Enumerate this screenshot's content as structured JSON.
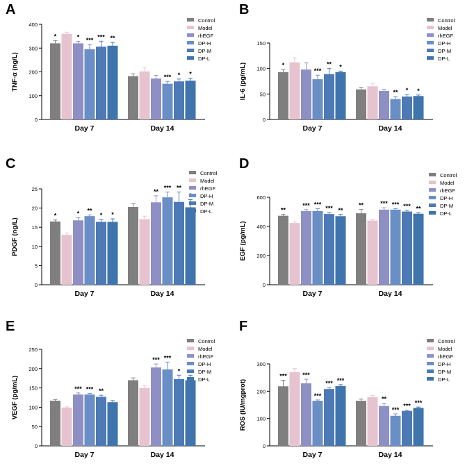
{
  "figure": {
    "groups": [
      "Day 7",
      "Day 14"
    ],
    "legend": [
      "Control",
      "Model",
      "rhEGF",
      "DP-H",
      "DP-M",
      "DP-L"
    ],
    "colors": [
      "#7f7f7f",
      "#e6c3cf",
      "#8e8fc5",
      "#6a8fc7",
      "#4d79b5",
      "#3f74ac"
    ]
  },
  "chart_data": [
    {
      "type": "bar",
      "panel": "A",
      "title": "",
      "ylabel": "TNF-α (ng/L)",
      "xlabel": "",
      "ylim": [
        0,
        400
      ],
      "yticks": [
        "0",
        "100",
        "200",
        "300",
        "400"
      ],
      "categories": [
        "Day 7",
        "Day 14"
      ],
      "series": [
        {
          "name": "Control",
          "values": [
            320,
            182
          ],
          "errors": [
            12,
            10
          ],
          "sig": [
            "*",
            ""
          ]
        },
        {
          "name": "Model",
          "values": [
            360,
            202
          ],
          "errors": [
            7,
            18
          ],
          "sig": [
            "",
            ""
          ]
        },
        {
          "name": "rhEGF",
          "values": [
            320,
            172
          ],
          "errors": [
            8,
            13
          ],
          "sig": [
            "*",
            ""
          ]
        },
        {
          "name": "DP-H",
          "values": [
            295,
            150
          ],
          "errors": [
            20,
            10
          ],
          "sig": [
            "***",
            "***"
          ]
        },
        {
          "name": "DP-M",
          "values": [
            306,
            160
          ],
          "errors": [
            23,
            10
          ],
          "sig": [
            "***",
            "*"
          ]
        },
        {
          "name": "DP-L",
          "values": [
            310,
            163
          ],
          "errors": [
            14,
            10
          ],
          "sig": [
            "**",
            "*"
          ]
        }
      ]
    },
    {
      "type": "bar",
      "panel": "B",
      "title": "",
      "ylabel": "IL-6 (pg/mL)",
      "xlabel": "",
      "ylim": [
        0,
        150
      ],
      "yticks": [
        "0",
        "50",
        "100",
        "150"
      ],
      "categories": [
        "Day 7",
        "Day 14"
      ],
      "series": [
        {
          "name": "Control",
          "values": [
            93,
            59
          ],
          "errors": [
            5,
            4
          ],
          "sig": [
            "*",
            ""
          ]
        },
        {
          "name": "Model",
          "values": [
            112,
            65
          ],
          "errors": [
            9,
            6
          ],
          "sig": [
            "",
            ""
          ]
        },
        {
          "name": "rhEGF",
          "values": [
            98,
            56
          ],
          "errors": [
            13,
            3
          ],
          "sig": [
            "",
            ""
          ]
        },
        {
          "name": "DP-H",
          "values": [
            79,
            40
          ],
          "errors": [
            8,
            5
          ],
          "sig": [
            "***",
            "**"
          ]
        },
        {
          "name": "DP-M",
          "values": [
            89,
            45
          ],
          "errors": [
            11,
            4
          ],
          "sig": [
            "**",
            "*"
          ]
        },
        {
          "name": "DP-L",
          "values": [
            93,
            46
          ],
          "errors": [
            2,
            2
          ],
          "sig": [
            "*",
            "*"
          ]
        }
      ]
    },
    {
      "type": "bar",
      "panel": "C",
      "title": "",
      "ylabel": "PDGF (ng/L)",
      "xlabel": "",
      "ylim": [
        0,
        25
      ],
      "yticks": [
        "0",
        "5",
        "10",
        "15",
        "20",
        "25"
      ],
      "categories": [
        "Day 7",
        "Day 14"
      ],
      "series": [
        {
          "name": "Control",
          "values": [
            16.5,
            20.3
          ],
          "errors": [
            0.4,
            0.8
          ],
          "sig": [
            "*",
            ""
          ]
        },
        {
          "name": "Model",
          "values": [
            13,
            17.1
          ],
          "errors": [
            0.5,
            0.8
          ],
          "sig": [
            "",
            ""
          ]
        },
        {
          "name": "rhEGF",
          "values": [
            16.8,
            21.5
          ],
          "errors": [
            0.7,
            1.7
          ],
          "sig": [
            "*",
            "**"
          ]
        },
        {
          "name": "DP-H",
          "values": [
            17.9,
            22.8
          ],
          "errors": [
            0.3,
            1.4
          ],
          "sig": [
            "**",
            "***"
          ]
        },
        {
          "name": "DP-M",
          "values": [
            16.4,
            21.6
          ],
          "errors": [
            0.6,
            2.6
          ],
          "sig": [
            "*",
            "**"
          ]
        },
        {
          "name": "DP-L",
          "values": [
            16.4,
            20.2
          ],
          "errors": [
            0.8,
            2.0
          ],
          "sig": [
            "*",
            "*"
          ]
        }
      ]
    },
    {
      "type": "bar",
      "panel": "D",
      "title": "",
      "ylabel": "EGF (pg/mL)",
      "xlabel": "",
      "ylim": [
        0,
        600
      ],
      "yticks": [
        "0",
        "200",
        "400",
        "600"
      ],
      "categories": [
        "Day 7",
        "Day 14"
      ],
      "series": [
        {
          "name": "Control",
          "values": [
            473,
            490
          ],
          "errors": [
            10,
            26
          ],
          "sig": [
            "**",
            "**"
          ]
        },
        {
          "name": "Model",
          "values": [
            423,
            440
          ],
          "errors": [
            8,
            7
          ],
          "sig": [
            "",
            ""
          ]
        },
        {
          "name": "rhEGF",
          "values": [
            505,
            515
          ],
          "errors": [
            10,
            13
          ],
          "sig": [
            "***",
            "***"
          ]
        },
        {
          "name": "DP-H",
          "values": [
            505,
            515
          ],
          "errors": [
            17,
            7
          ],
          "sig": [
            "***",
            "***"
          ]
        },
        {
          "name": "DP-M",
          "values": [
            485,
            502
          ],
          "errors": [
            10,
            8
          ],
          "sig": [
            "***",
            "***"
          ]
        },
        {
          "name": "DP-L",
          "values": [
            470,
            487
          ],
          "errors": [
            12,
            7
          ],
          "sig": [
            "**",
            "**"
          ]
        }
      ]
    },
    {
      "type": "bar",
      "panel": "E",
      "title": "",
      "ylabel": "VEGF (pg/mL)",
      "xlabel": "",
      "ylim": [
        0,
        250
      ],
      "yticks": [
        "0",
        "50",
        "100",
        "150",
        "200",
        "250"
      ],
      "categories": [
        "Day 7",
        "Day 14"
      ],
      "series": [
        {
          "name": "Control",
          "values": [
            117,
            170
          ],
          "errors": [
            3,
            6
          ],
          "sig": [
            "",
            ""
          ]
        },
        {
          "name": "Model",
          "values": [
            99,
            150
          ],
          "errors": [
            2,
            6
          ],
          "sig": [
            "",
            ""
          ]
        },
        {
          "name": "rhEGF",
          "values": [
            133,
            203
          ],
          "errors": [
            4,
            9
          ],
          "sig": [
            "***",
            "***"
          ]
        },
        {
          "name": "DP-H",
          "values": [
            133,
            198
          ],
          "errors": [
            3,
            19
          ],
          "sig": [
            "***",
            "***"
          ]
        },
        {
          "name": "DP-M",
          "values": [
            127,
            173
          ],
          "errors": [
            4,
            10
          ],
          "sig": [
            "**",
            "*"
          ]
        },
        {
          "name": "DP-L",
          "values": [
            113,
            170
          ],
          "errors": [
            4,
            13
          ],
          "sig": [
            "",
            ""
          ]
        }
      ]
    },
    {
      "type": "bar",
      "panel": "F",
      "title": "",
      "ylabel": "ROS (IU/mgprot)",
      "xlabel": "",
      "ylim": [
        0,
        300
      ],
      "yticks": [
        "0",
        "100",
        "200",
        "300"
      ],
      "categories": [
        "Day 7",
        "Day 14"
      ],
      "series": [
        {
          "name": "Control",
          "values": [
            218,
            165
          ],
          "errors": [
            22,
            6
          ],
          "sig": [
            "***",
            ""
          ]
        },
        {
          "name": "Model",
          "values": [
            270,
            178
          ],
          "errors": [
            13,
            6
          ],
          "sig": [
            "",
            ""
          ]
        },
        {
          "name": "rhEGF",
          "values": [
            229,
            146
          ],
          "errors": [
            15,
            10
          ],
          "sig": [
            "***",
            "**"
          ]
        },
        {
          "name": "DP-H",
          "values": [
            165,
            110
          ],
          "errors": [
            3,
            7
          ],
          "sig": [
            "***",
            "***"
          ]
        },
        {
          "name": "DP-M",
          "values": [
            208,
            128
          ],
          "errors": [
            5,
            3
          ],
          "sig": [
            "***",
            "***"
          ]
        },
        {
          "name": "DP-L",
          "values": [
            219,
            139
          ],
          "errors": [
            5,
            3
          ],
          "sig": [
            "***",
            "***"
          ]
        }
      ]
    }
  ]
}
